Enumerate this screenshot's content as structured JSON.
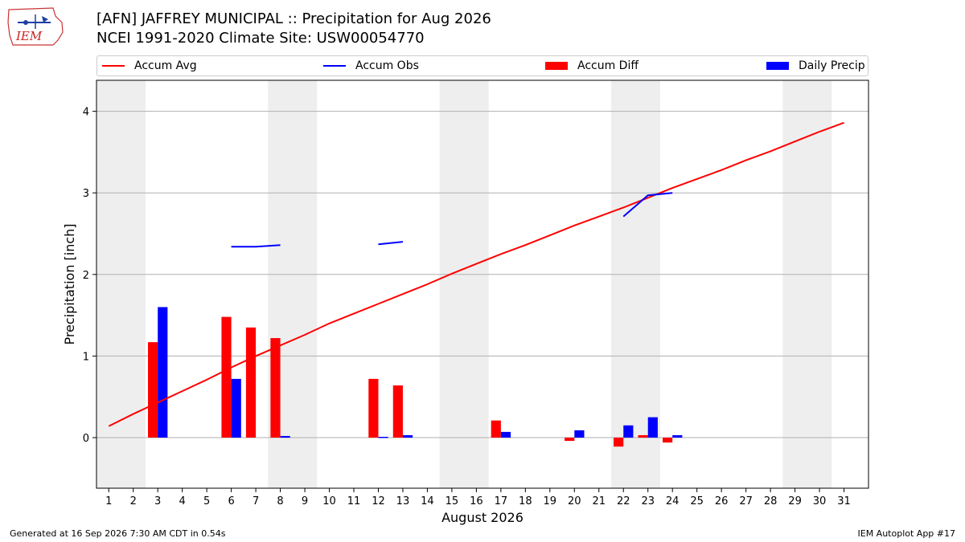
{
  "header": {
    "title_line1": "[AFN] JAFFREY MUNICIPAL :: Precipitation for Aug 2026",
    "title_line2": "NCEI 1991-2020 Climate Site: USW00054770",
    "logo_text": "IEM"
  },
  "legend": {
    "placement": "top",
    "items": [
      {
        "label": "Accum Avg",
        "kind": "line",
        "color": "#ff0000"
      },
      {
        "label": "Accum Obs",
        "kind": "line",
        "color": "#0000ff"
      },
      {
        "label": "Accum Diff",
        "kind": "bar",
        "color": "#ff0000"
      },
      {
        "label": "Daily Precip",
        "kind": "bar",
        "color": "#0000ff"
      }
    ]
  },
  "footer": {
    "left": "Generated at 16 Sep 2026 7:30 AM CDT in 0.54s",
    "right": "IEM Autoplot App #17"
  },
  "chart_data": {
    "type": "bar",
    "xlabel": "August 2026",
    "ylabel": "Precipitation [inch]",
    "xlim": [
      0.5,
      32
    ],
    "ylim": [
      -0.62,
      4.38
    ],
    "grid": "horizontal",
    "x_ticks": [
      1,
      2,
      3,
      4,
      5,
      6,
      7,
      8,
      9,
      10,
      11,
      12,
      13,
      14,
      15,
      16,
      17,
      18,
      19,
      20,
      21,
      22,
      23,
      24,
      25,
      26,
      27,
      28,
      29,
      30,
      31
    ],
    "y_ticks": [
      0,
      1,
      2,
      3,
      4
    ],
    "weekend_shading": [
      [
        1,
        2
      ],
      [
        8,
        9
      ],
      [
        15,
        16
      ],
      [
        22,
        23
      ],
      [
        29,
        30
      ]
    ],
    "weekend_color": "#eeeeee",
    "series": [
      {
        "name": "Accum Avg",
        "type": "line",
        "color": "#ff0000",
        "x": [
          1,
          2,
          3,
          4,
          5,
          6,
          7,
          8,
          9,
          10,
          11,
          12,
          13,
          14,
          15,
          16,
          17,
          18,
          19,
          20,
          21,
          22,
          23,
          24,
          25,
          26,
          27,
          28,
          29,
          30,
          31
        ],
        "values": [
          0.14,
          0.29,
          0.43,
          0.57,
          0.71,
          0.86,
          1.0,
          1.13,
          1.26,
          1.4,
          1.52,
          1.64,
          1.76,
          1.88,
          2.01,
          2.13,
          2.25,
          2.36,
          2.48,
          2.6,
          2.71,
          2.82,
          2.94,
          3.06,
          3.17,
          3.28,
          3.4,
          3.51,
          3.63,
          3.75,
          3.86
        ]
      },
      {
        "name": "Accum Obs",
        "type": "line",
        "color": "#0000ff",
        "segments": [
          {
            "x": [
              6,
              7,
              8
            ],
            "values": [
              2.34,
              2.34,
              2.36
            ]
          },
          {
            "x": [
              12,
              13
            ],
            "values": [
              2.37,
              2.4
            ]
          },
          {
            "x": [
              22,
              23,
              24
            ],
            "values": [
              2.71,
              2.97,
              3.0
            ]
          }
        ]
      },
      {
        "name": "Accum Diff",
        "type": "bar",
        "color": "#ff0000",
        "x": [
          3,
          6,
          7,
          8,
          12,
          13,
          17,
          20,
          22,
          23,
          24
        ],
        "values": [
          1.17,
          1.48,
          1.35,
          1.22,
          0.72,
          0.64,
          0.21,
          -0.04,
          -0.11,
          0.03,
          -0.06
        ]
      },
      {
        "name": "Daily Precip",
        "type": "bar",
        "color": "#0000ff",
        "x": [
          3,
          6,
          8,
          12,
          13,
          17,
          20,
          22,
          23,
          24
        ],
        "values": [
          1.6,
          0.72,
          0.02,
          0.01,
          0.03,
          0.07,
          0.09,
          0.15,
          0.25,
          0.03
        ]
      }
    ]
  }
}
